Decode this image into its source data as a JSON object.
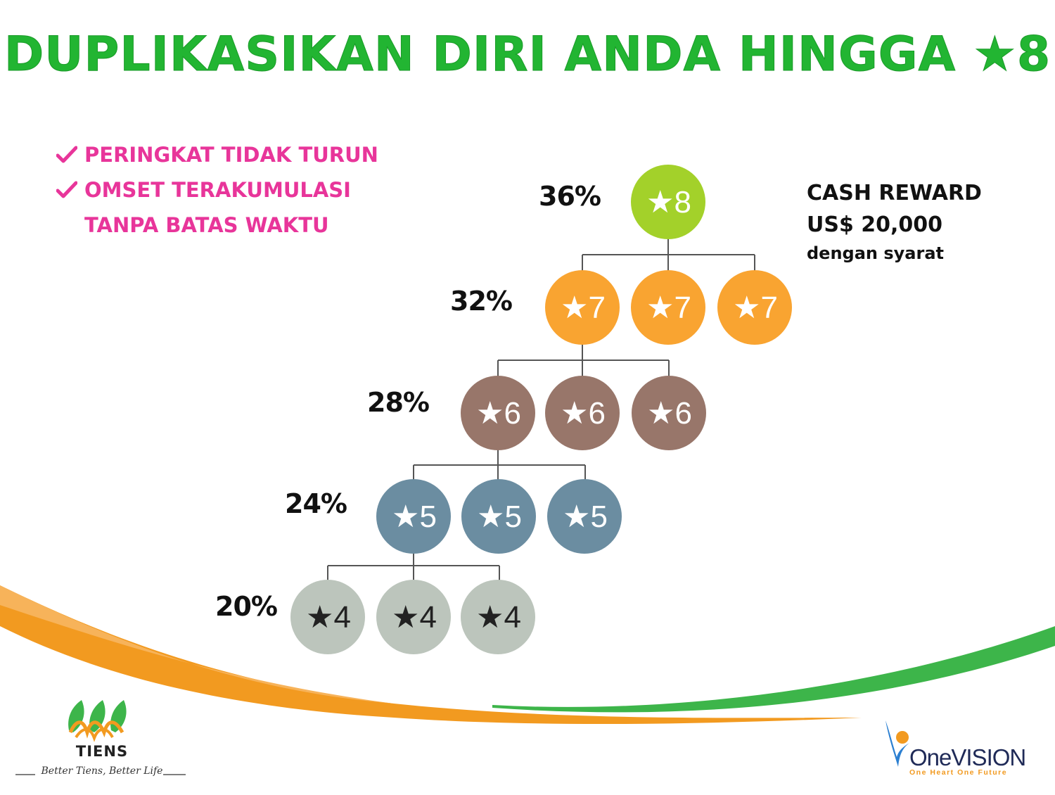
{
  "title": "DUPLIKASIKAN DIRI ANDA HINGGA ★8",
  "bullets": [
    {
      "text": "PERINGKAT TIDAK TURUN",
      "checked": true
    },
    {
      "text": "OMSET TERAKUMULASI",
      "checked": true
    },
    {
      "text": "TANPA BATAS WAKTU",
      "checked": false
    }
  ],
  "levels": [
    {
      "percent": "36%",
      "label": "★8",
      "color": "#a3d12a",
      "nodes": 1
    },
    {
      "percent": "32%",
      "label": "★7",
      "color": "#f9a431",
      "nodes": 3
    },
    {
      "percent": "28%",
      "label": "★6",
      "color": "#98766a",
      "nodes": 3
    },
    {
      "percent": "24%",
      "label": "★5",
      "color": "#6b8da1",
      "nodes": 3
    },
    {
      "percent": "20%",
      "label": "★4",
      "color": "#bcc5bc",
      "nodes": 3
    }
  ],
  "reward": {
    "line1": "CASH REWARD",
    "line2": "US$ 20,000",
    "line3": "dengan syarat"
  },
  "brand_left": {
    "name": "TIENS",
    "tagline": "Better Tiens, Better Life"
  },
  "brand_right": {
    "name": "OneVISION",
    "tagline": "One Heart One Future"
  },
  "colors": {
    "title": "#22b532",
    "bullet": "#e8359a",
    "swoosh_orange": "#f29a20",
    "swoosh_green": "#3db54a"
  }
}
